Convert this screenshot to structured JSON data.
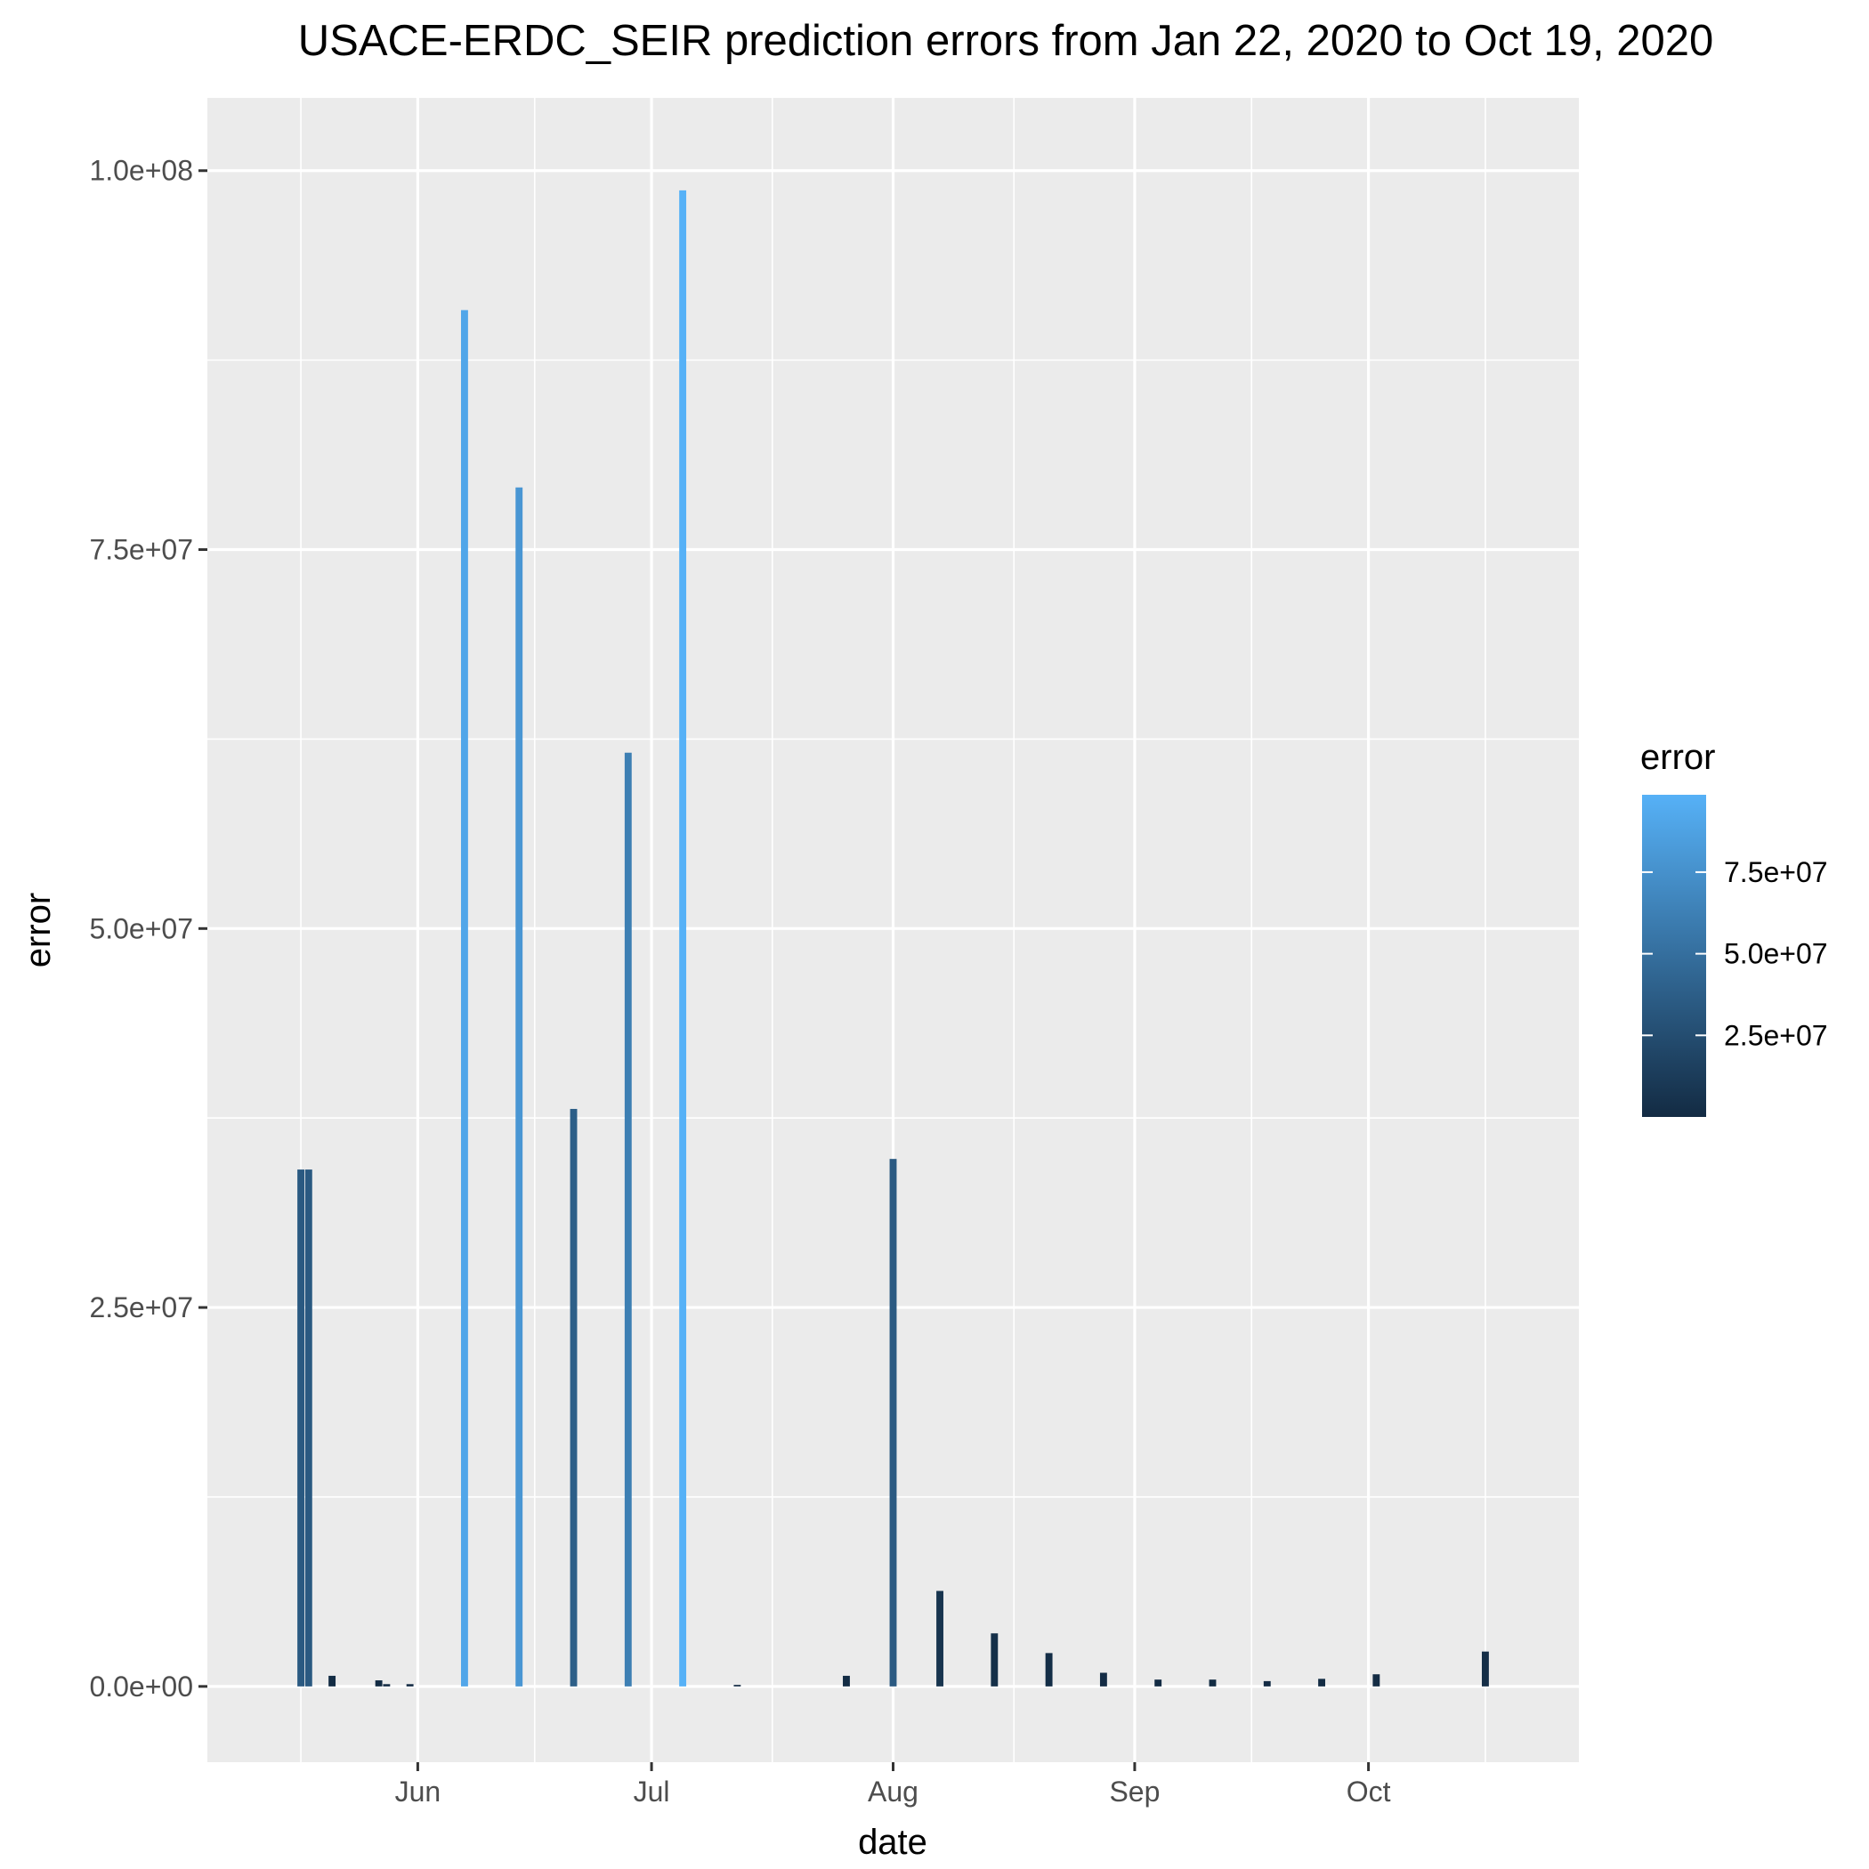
{
  "chart_data": {
    "type": "bar",
    "title": "USACE-ERDC_SEIR prediction errors from Jan 22, 2020 to Oct 19, 2020",
    "xlabel": "date",
    "ylabel": "error",
    "x_range": [
      "2020-05-05",
      "2020-10-28"
    ],
    "ylim": [
      -5000000,
      104800000
    ],
    "y_ticks": [
      {
        "value": 0,
        "label": "0.0e+00"
      },
      {
        "value": 25000000,
        "label": "2.5e+07"
      },
      {
        "value": 50000000,
        "label": "5.0e+07"
      },
      {
        "value": 75000000,
        "label": "7.5e+07"
      },
      {
        "value": 100000000,
        "label": "1.0e+08"
      }
    ],
    "x_ticks": [
      {
        "date": "2020-06-01",
        "label": "Jun"
      },
      {
        "date": "2020-07-01",
        "label": "Jul"
      },
      {
        "date": "2020-08-01",
        "label": "Aug"
      },
      {
        "date": "2020-09-01",
        "label": "Sep"
      },
      {
        "date": "2020-10-01",
        "label": "Oct"
      }
    ],
    "bars": [
      {
        "date": "2020-05-17",
        "value": 34100000
      },
      {
        "date": "2020-05-18",
        "value": 34100000
      },
      {
        "date": "2020-05-21",
        "value": 700000
      },
      {
        "date": "2020-05-27",
        "value": 400000
      },
      {
        "date": "2020-05-28",
        "value": 150000
      },
      {
        "date": "2020-05-31",
        "value": 150000
      },
      {
        "date": "2020-06-07",
        "value": 90800000
      },
      {
        "date": "2020-06-14",
        "value": 79100000
      },
      {
        "date": "2020-06-21",
        "value": 38100000
      },
      {
        "date": "2020-06-28",
        "value": 61600000
      },
      {
        "date": "2020-07-05",
        "value": 98700000
      },
      {
        "date": "2020-07-12",
        "value": 100000
      },
      {
        "date": "2020-07-26",
        "value": 700000
      },
      {
        "date": "2020-08-01",
        "value": 34800000
      },
      {
        "date": "2020-08-07",
        "value": 6300000
      },
      {
        "date": "2020-08-14",
        "value": 3500000
      },
      {
        "date": "2020-08-21",
        "value": 2200000
      },
      {
        "date": "2020-08-28",
        "value": 900000
      },
      {
        "date": "2020-09-04",
        "value": 450000
      },
      {
        "date": "2020-09-11",
        "value": 450000
      },
      {
        "date": "2020-09-18",
        "value": 350000
      },
      {
        "date": "2020-09-25",
        "value": 500000
      },
      {
        "date": "2020-10-02",
        "value": 800000
      },
      {
        "date": "2020-10-16",
        "value": 2300000
      }
    ],
    "grid": true,
    "background_color": "#ebebeb",
    "legend": {
      "title": "error",
      "position": "right",
      "color_low": "#132b43",
      "color_high": "#56b1f7",
      "range": [
        0,
        98700000
      ],
      "ticks": [
        {
          "value": 25000000,
          "label": "2.5e+07"
        },
        {
          "value": 50000000,
          "label": "5.0e+07"
        },
        {
          "value": 75000000,
          "label": "7.5e+07"
        }
      ]
    }
  }
}
